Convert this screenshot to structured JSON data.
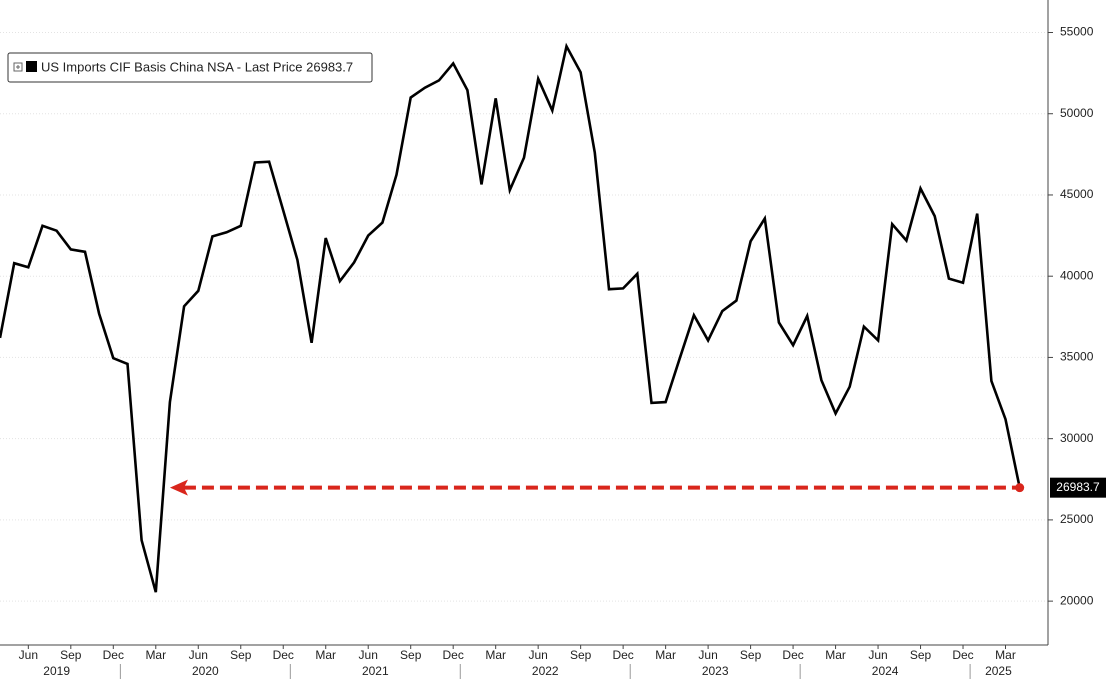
{
  "chart_data": {
    "type": "line",
    "series": [
      {
        "name": "US Imports CIF Basis China NSA - Last Price 26983.7",
        "color": "#000000",
        "values": [
          36200,
          40800,
          40550,
          43100,
          42800,
          41650,
          41500,
          37700,
          34950,
          34600,
          23750,
          20550,
          32250,
          38150,
          39100,
          42450,
          42700,
          43100,
          47000,
          47050,
          44050,
          41000,
          35900,
          42350,
          39700,
          40850,
          42500,
          43300,
          46250,
          51000,
          51600,
          52050,
          53100,
          51450,
          45650,
          50950,
          45300,
          47300,
          52150,
          50200,
          54150,
          52550,
          47600,
          39200,
          39250,
          40150,
          32200,
          32250,
          34950,
          37600,
          36050,
          37850,
          38500,
          42150,
          43550,
          37150,
          35750,
          37550,
          33600,
          31550,
          33200,
          36900,
          36050,
          43200,
          42200,
          45400,
          43700,
          39850,
          39600,
          43850,
          33550,
          31200,
          26983.7
        ]
      }
    ],
    "x": [
      "2019-04",
      "2019-05",
      "2019-06",
      "2019-07",
      "2019-08",
      "2019-09",
      "2019-10",
      "2019-11",
      "2019-12",
      "2020-01",
      "2020-02",
      "2020-03",
      "2020-04",
      "2020-05",
      "2020-06",
      "2020-07",
      "2020-08",
      "2020-09",
      "2020-10",
      "2020-11",
      "2020-12",
      "2021-01",
      "2021-02",
      "2021-03",
      "2021-04",
      "2021-05",
      "2021-06",
      "2021-07",
      "2021-08",
      "2021-09",
      "2021-10",
      "2021-11",
      "2021-12",
      "2022-01",
      "2022-02",
      "2022-03",
      "2022-04",
      "2022-05",
      "2022-06",
      "2022-07",
      "2022-08",
      "2022-09",
      "2022-10",
      "2022-11",
      "2022-12",
      "2023-01",
      "2023-02",
      "2023-03",
      "2023-04",
      "2023-05",
      "2023-06",
      "2023-07",
      "2023-08",
      "2023-09",
      "2023-10",
      "2023-11",
      "2023-12",
      "2024-01",
      "2024-02",
      "2024-03",
      "2024-04",
      "2024-05",
      "2024-06",
      "2024-07",
      "2024-08",
      "2024-09",
      "2024-10",
      "2024-11",
      "2024-12",
      "2025-01",
      "2025-02",
      "2025-03",
      "2025-04"
    ],
    "xlim": [
      "2019-04",
      "2025-06"
    ],
    "xticks": [
      {
        "value": "2019-06",
        "label": "Jun"
      },
      {
        "value": "2019-09",
        "label": "Sep"
      },
      {
        "value": "2019-12",
        "label": "Dec"
      },
      {
        "value": "2020-03",
        "label": "Mar"
      },
      {
        "value": "2020-06",
        "label": "Jun"
      },
      {
        "value": "2020-09",
        "label": "Sep"
      },
      {
        "value": "2020-12",
        "label": "Dec"
      },
      {
        "value": "2021-03",
        "label": "Mar"
      },
      {
        "value": "2021-06",
        "label": "Jun"
      },
      {
        "value": "2021-09",
        "label": "Sep"
      },
      {
        "value": "2021-12",
        "label": "Dec"
      },
      {
        "value": "2022-03",
        "label": "Mar"
      },
      {
        "value": "2022-06",
        "label": "Jun"
      },
      {
        "value": "2022-09",
        "label": "Sep"
      },
      {
        "value": "2022-12",
        "label": "Dec"
      },
      {
        "value": "2023-03",
        "label": "Mar"
      },
      {
        "value": "2023-06",
        "label": "Jun"
      },
      {
        "value": "2023-09",
        "label": "Sep"
      },
      {
        "value": "2023-12",
        "label": "Dec"
      },
      {
        "value": "2024-03",
        "label": "Mar"
      },
      {
        "value": "2024-06",
        "label": "Jun"
      },
      {
        "value": "2024-09",
        "label": "Sep"
      },
      {
        "value": "2024-12",
        "label": "Dec"
      },
      {
        "value": "2025-03",
        "label": "Mar"
      }
    ],
    "year_ticks": [
      "2019",
      "2020",
      "2021",
      "2022",
      "2023",
      "2024",
      "2025"
    ],
    "ylim": [
      17300,
      57000
    ],
    "yticks": [
      20000,
      25000,
      30000,
      35000,
      40000,
      45000,
      50000,
      55000
    ],
    "grid": true,
    "last_price": 26983.7,
    "annotation": {
      "type": "arrow",
      "x": [
        "2020-04",
        "2025-04"
      ],
      "value": 26983.7,
      "color": "#d9261c"
    }
  }
}
